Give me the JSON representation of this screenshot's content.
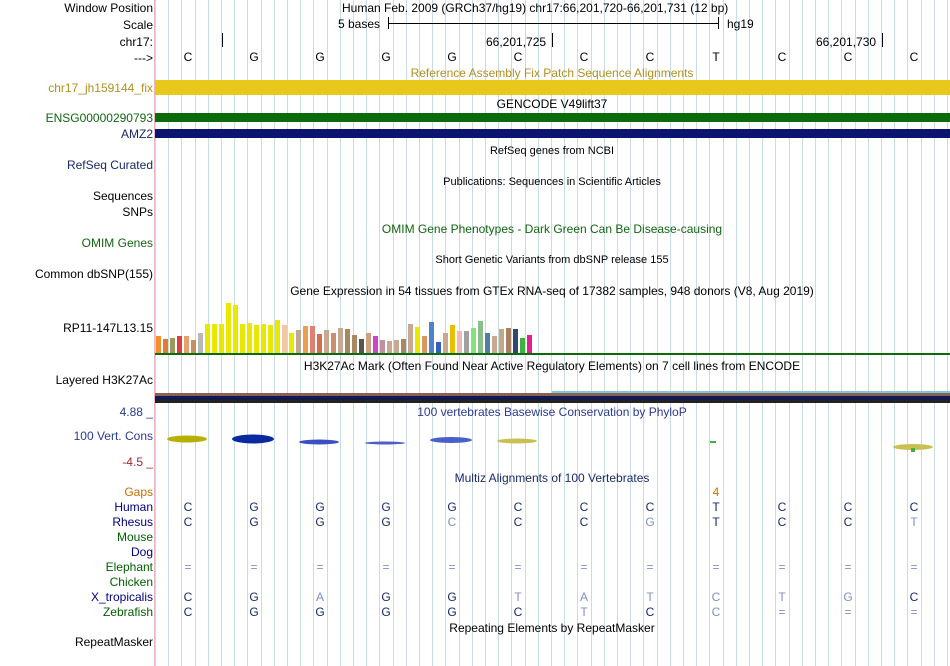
{
  "header": {
    "window_position_label": "Window Position",
    "window_position_value": "Human Feb. 2009 (GRCh37/hg19)    chr17:66,201,720-66,201,731 (12 bp)",
    "scale_label": "Scale",
    "scale_text": "5 bases",
    "scale_db": "hg19",
    "chrom_label": "chr17:",
    "coord_1": "66,201,725",
    "coord_2": "66,201,730",
    "strand_label": "--->"
  },
  "bases": [
    "C",
    "G",
    "G",
    "G",
    "G",
    "C",
    "C",
    "C",
    "T",
    "C",
    "C",
    "C"
  ],
  "tracks": {
    "fix_patch_title": "Reference Assembly Fix Patch Sequence Alignments",
    "fix_patch_label": "chr17_jh159144_fix",
    "gencode_title": "GENCODE V49lift37",
    "gencode_gene_1": "ENSG00000290793",
    "gencode_gene_2": "AMZ2",
    "refseq_title": "RefSeq genes from NCBI",
    "refseq_label": "RefSeq Curated",
    "pubs_title": "Publications: Sequences in Scientific Articles",
    "pubs_label_1": "Sequences",
    "pubs_label_2": "SNPs",
    "omim_title": "OMIM Gene Phenotypes - Dark Green Can Be Disease-causing",
    "omim_label": "OMIM Genes",
    "dbsnp_title": "Short Genetic Variants from dbSNP release 155",
    "dbsnp_label": "Common dbSNP(155)",
    "gtex_title": "Gene Expression in 54 tissues from GTEx RNA-seq of 17382 samples, 948 donors (V8, Aug 2019)",
    "gtex_label": "RP11-147L13.15",
    "h3k27ac_title": "H3K27Ac Mark (Often Found Near Active Regulatory Elements) on 7 cell lines from ENCODE",
    "h3k27ac_label": "Layered H3K27Ac",
    "cons_title": "100 vertebrates Basewise Conservation by PhyloP",
    "cons_label": "100 Vert. Cons",
    "cons_max": "4.88 _",
    "cons_min": "-4.5 _",
    "multiz_title": "Multiz Alignments of 100 Vertebrates",
    "gaps_label": "Gaps",
    "gaps_value": "4",
    "repeat_title": "Repeating Elements by RepeatMasker",
    "repeat_label": "RepeatMasker"
  },
  "gtex_values": [
    18,
    15,
    16,
    18,
    18,
    14,
    22,
    32,
    32,
    32,
    54,
    52,
    32,
    33,
    31,
    32,
    31,
    36,
    30,
    22,
    25,
    29,
    29,
    21,
    25,
    22,
    27,
    26,
    20,
    15,
    22,
    18,
    14,
    13,
    14,
    15,
    32,
    28,
    18,
    34,
    12,
    22,
    30,
    24,
    24,
    27,
    35,
    22,
    18,
    26,
    27,
    26,
    16,
    20
  ],
  "gtex_colors": [
    "#f28e2b",
    "#e07b39",
    "#9a9a5a",
    "#d94040",
    "#e8a06a",
    "#c78f5f",
    "#b8b8b8",
    "#e8e800",
    "#e8e800",
    "#e8e800",
    "#e8e800",
    "#e8e800",
    "#e8e800",
    "#e8e800",
    "#e8e800",
    "#e8e800",
    "#e8e800",
    "#e8e800",
    "#f0c8a8",
    "#e8e800",
    "#c0a890",
    "#e8a050",
    "#e08070",
    "#d07050",
    "#c8a890",
    "#c89070",
    "#c8a890",
    "#a88860",
    "#a88860",
    "#555555",
    "#d0a080",
    "#cc44cc",
    "#c090a0",
    "#c8a890",
    "#c8a890",
    "#a88860",
    "#c8a890",
    "#e8e800",
    "#d89860",
    "#5080d0",
    "#3060c0",
    "#c8a890",
    "#e8c000",
    "#f0b8b8",
    "#a0a0a0",
    "#88e080",
    "#88c088",
    "#5080a0",
    "#c8a890",
    "#c0a888",
    "#a88060",
    "#304870",
    "#40b040",
    "#e02090"
  ],
  "species": [
    {
      "name": "Gaps",
      "bases": [
        "",
        "",
        "",
        "",
        "",
        "",
        "",
        "",
        "4",
        "",
        "",
        ""
      ],
      "color": "#c87000"
    },
    {
      "name": "Human",
      "bases": [
        "C",
        "G",
        "G",
        "G",
        "G",
        "C",
        "C",
        "C",
        "T",
        "C",
        "C",
        "C"
      ],
      "color": "#000080"
    },
    {
      "name": "Rhesus",
      "bases": [
        "C",
        "G",
        "G",
        "G",
        "C",
        "C",
        "C",
        "G",
        "T",
        "C",
        "C",
        "T"
      ],
      "color": "#000080"
    },
    {
      "name": "Mouse",
      "bases": [
        "",
        "",
        "",
        "",
        "",
        "",
        "",
        "",
        "",
        "",
        "",
        ""
      ],
      "color": "#006000"
    },
    {
      "name": "Dog",
      "bases": [
        "",
        "",
        "",
        "",
        "",
        "",
        "",
        "",
        "",
        "",
        "",
        ""
      ],
      "color": "#000080"
    },
    {
      "name": "Elephant",
      "bases": [
        "=",
        "=",
        "=",
        "=",
        "=",
        "=",
        "=",
        "=",
        "=",
        "=",
        "=",
        "="
      ],
      "color": "#006000"
    },
    {
      "name": "Chicken",
      "bases": [
        "",
        "",
        "",
        "",
        "",
        "",
        "",
        "",
        "",
        "",
        "",
        ""
      ],
      "color": "#006000"
    },
    {
      "name": "X_tropicalis",
      "bases": [
        "C",
        "G",
        "A",
        "G",
        "G",
        "T",
        "A",
        "T",
        "C",
        "T",
        "G",
        "C"
      ],
      "color": "#000080"
    },
    {
      "name": "Zebrafish",
      "bases": [
        "C",
        "G",
        "G",
        "G",
        "G",
        "C",
        "T",
        "C",
        "C",
        "=",
        "=",
        "="
      ],
      "color": "#006000"
    }
  ],
  "colors": {
    "fix_patch": "#e8c81a",
    "gencode_green": "#0b6b0b",
    "gencode_navy": "#0b1570",
    "label_navy": "#1a2a6a",
    "label_green": "#116611",
    "label_gold": "#b09020",
    "cons_blue": "#2c3a90",
    "cons_red": "#9a2a2a"
  }
}
